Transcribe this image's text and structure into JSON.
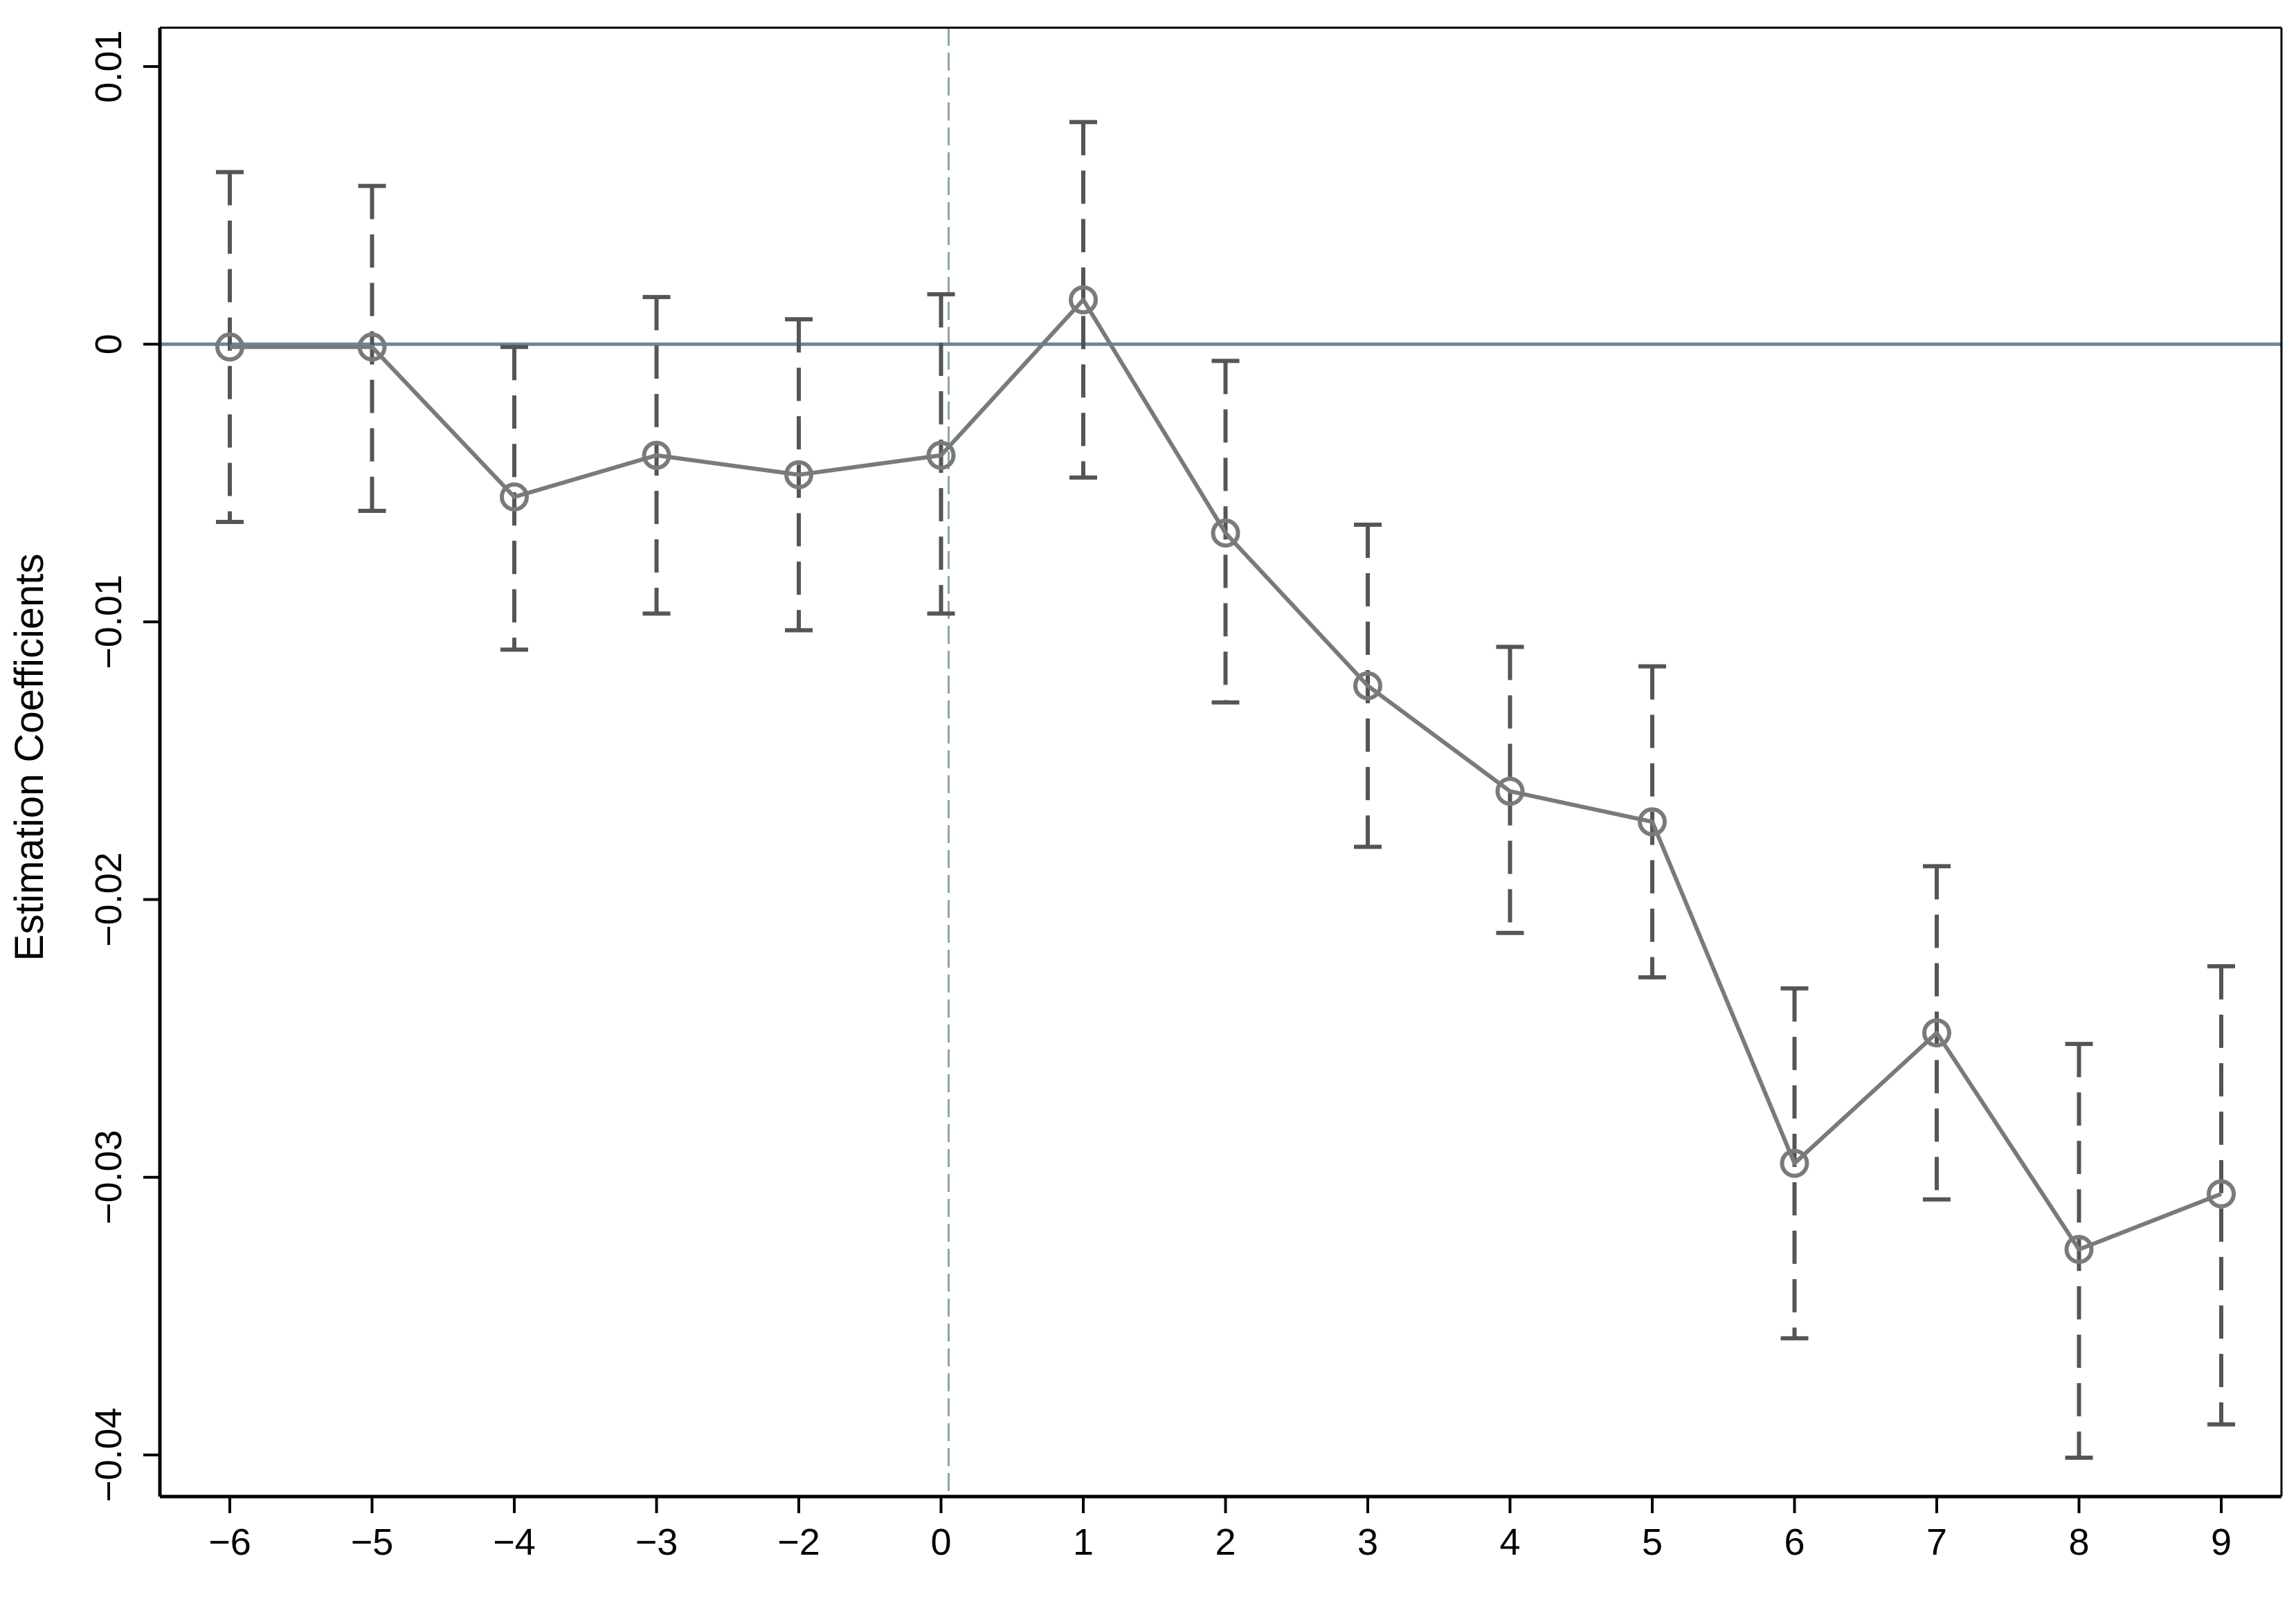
{
  "chart_data": {
    "type": "line",
    "title": "",
    "xlabel": "",
    "ylabel": "Estimation Coefficients",
    "categories": [
      "−6",
      "−5",
      "−4",
      "−3",
      "−2",
      "0",
      "1",
      "2",
      "3",
      "4",
      "5",
      "6",
      "7",
      "8",
      "9"
    ],
    "x": [
      -6,
      -5,
      -4,
      -3,
      -2,
      0,
      1,
      2,
      3,
      4,
      5,
      6,
      7,
      8,
      9
    ],
    "series": [
      {
        "values": [
          -0.0001,
          -0.0001,
          -0.0055,
          -0.004,
          -0.0047,
          -0.004,
          0.0016,
          -0.0068,
          -0.0123,
          -0.0161,
          -0.0172,
          -0.0295,
          -0.0248,
          -0.0326,
          -0.0306
        ],
        "ci_lower": [
          -0.0064,
          -0.006,
          -0.011,
          -0.0097,
          -0.0103,
          -0.0097,
          -0.0048,
          -0.0129,
          -0.0181,
          -0.0212,
          -0.0228,
          -0.0358,
          -0.0308,
          -0.0401,
          -0.0389
        ],
        "ci_upper": [
          0.0062,
          0.0057,
          -0.0001,
          0.0017,
          0.0009,
          0.0018,
          0.008,
          -0.0006,
          -0.0065,
          -0.0109,
          -0.0116,
          -0.0232,
          -0.0188,
          -0.0252,
          -0.0224
        ]
      }
    ],
    "ylim": [
      -0.0415,
      0.0114
    ],
    "yticks": [
      0.01,
      0,
      -0.01,
      -0.02,
      -0.03,
      -0.04
    ],
    "ytick_labels": [
      "0.01",
      "0",
      "−0.01",
      "−0.02",
      "−0.03",
      "−0.04"
    ],
    "reference_hline": 0,
    "reference_vline_between": [
      "−2",
      "0"
    ],
    "grid": false,
    "colors": {
      "series": "#7a7a7a",
      "ci": "#555555",
      "hline": "#6e8597",
      "vline": "#8aaa9a",
      "axes": "#000000"
    }
  }
}
